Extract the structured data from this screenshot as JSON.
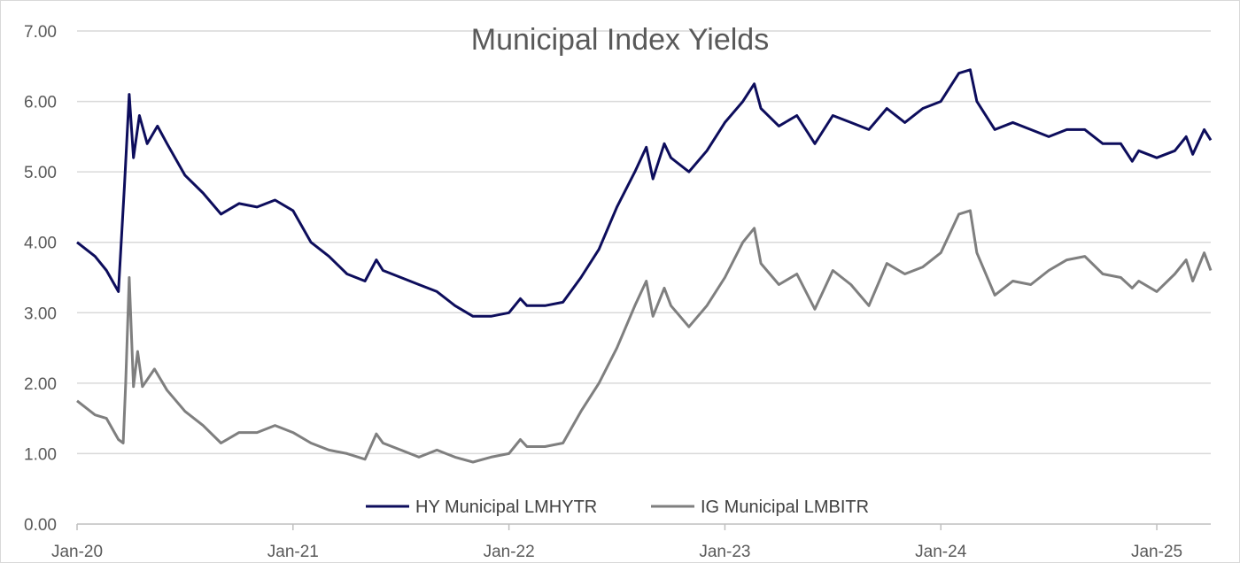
{
  "chart_data": {
    "type": "line",
    "title": "Municipal Index Yields",
    "xlabel": "",
    "ylabel": "",
    "ylim": [
      0,
      7
    ],
    "xlim": [
      "2020-01",
      "2025-04"
    ],
    "grid": true,
    "legend_position": "bottom",
    "y_ticks": [
      "0.00",
      "1.00",
      "2.00",
      "3.00",
      "4.00",
      "5.00",
      "6.00",
      "7.00"
    ],
    "x_ticks": [
      {
        "label": "Jan-20",
        "date": "2020-01"
      },
      {
        "label": "Jan-21",
        "date": "2021-01"
      },
      {
        "label": "Jan-22",
        "date": "2022-01"
      },
      {
        "label": "Jan-23",
        "date": "2023-01"
      },
      {
        "label": "Jan-24",
        "date": "2024-01"
      },
      {
        "label": "Jan-25",
        "date": "2025-01"
      }
    ],
    "series": [
      {
        "name": "HY Municipal LMHYTR",
        "color": "#0d0d5c",
        "points": [
          [
            "2020-01",
            4.0
          ],
          [
            "2020-02",
            3.8
          ],
          [
            "2020-02-20",
            3.6
          ],
          [
            "2020-03-10",
            3.3
          ],
          [
            "2020-03-20",
            4.8
          ],
          [
            "2020-03-28",
            6.1
          ],
          [
            "2020-04-05",
            5.2
          ],
          [
            "2020-04-15",
            5.8
          ],
          [
            "2020-04-28",
            5.4
          ],
          [
            "2020-05-15",
            5.65
          ],
          [
            "2020-06",
            5.4
          ],
          [
            "2020-07",
            4.95
          ],
          [
            "2020-08",
            4.7
          ],
          [
            "2020-09",
            4.4
          ],
          [
            "2020-10",
            4.55
          ],
          [
            "2020-11",
            4.5
          ],
          [
            "2020-12",
            4.6
          ],
          [
            "2021-01",
            4.45
          ],
          [
            "2021-02",
            4.0
          ],
          [
            "2021-03",
            3.8
          ],
          [
            "2021-04",
            3.55
          ],
          [
            "2021-05",
            3.45
          ],
          [
            "2021-05-20",
            3.75
          ],
          [
            "2021-06",
            3.6
          ],
          [
            "2021-07",
            3.5
          ],
          [
            "2021-08",
            3.4
          ],
          [
            "2021-09",
            3.3
          ],
          [
            "2021-10",
            3.1
          ],
          [
            "2021-11",
            2.95
          ],
          [
            "2021-12",
            2.95
          ],
          [
            "2022-01",
            3.0
          ],
          [
            "2022-01-20",
            3.2
          ],
          [
            "2022-02",
            3.1
          ],
          [
            "2022-03",
            3.1
          ],
          [
            "2022-04",
            3.15
          ],
          [
            "2022-05",
            3.5
          ],
          [
            "2022-06",
            3.9
          ],
          [
            "2022-07",
            4.5
          ],
          [
            "2022-08",
            5.0
          ],
          [
            "2022-08-20",
            5.35
          ],
          [
            "2022-09",
            4.9
          ],
          [
            "2022-09-20",
            5.4
          ],
          [
            "2022-10",
            5.2
          ],
          [
            "2022-11",
            5.0
          ],
          [
            "2022-12",
            5.3
          ],
          [
            "2023-01",
            5.7
          ],
          [
            "2023-02",
            6.0
          ],
          [
            "2023-02-20",
            6.25
          ],
          [
            "2023-03",
            5.9
          ],
          [
            "2023-04",
            5.65
          ],
          [
            "2023-05",
            5.8
          ],
          [
            "2023-06",
            5.4
          ],
          [
            "2023-07",
            5.8
          ],
          [
            "2023-08",
            5.7
          ],
          [
            "2023-09",
            5.6
          ],
          [
            "2023-10",
            5.9
          ],
          [
            "2023-11",
            5.7
          ],
          [
            "2023-12",
            5.9
          ],
          [
            "2024-01",
            6.0
          ],
          [
            "2024-02",
            6.4
          ],
          [
            "2024-02-20",
            6.45
          ],
          [
            "2024-03",
            6.0
          ],
          [
            "2024-04",
            5.6
          ],
          [
            "2024-05",
            5.7
          ],
          [
            "2024-06",
            5.6
          ],
          [
            "2024-07",
            5.5
          ],
          [
            "2024-08",
            5.6
          ],
          [
            "2024-09",
            5.6
          ],
          [
            "2024-10",
            5.4
          ],
          [
            "2024-11",
            5.4
          ],
          [
            "2024-11-20",
            5.15
          ],
          [
            "2024-12",
            5.3
          ],
          [
            "2025-01",
            5.2
          ],
          [
            "2025-02",
            5.3
          ],
          [
            "2025-02-20",
            5.5
          ],
          [
            "2025-03",
            5.25
          ],
          [
            "2025-03-20",
            5.6
          ],
          [
            "2025-04",
            5.45
          ]
        ]
      },
      {
        "name": "IG Municipal LMBITR",
        "color": "#7f7f7f",
        "points": [
          [
            "2020-01",
            1.75
          ],
          [
            "2020-02",
            1.55
          ],
          [
            "2020-02-20",
            1.5
          ],
          [
            "2020-03-10",
            1.2
          ],
          [
            "2020-03-18",
            1.15
          ],
          [
            "2020-03-22",
            2.0
          ],
          [
            "2020-03-28",
            3.5
          ],
          [
            "2020-04-05",
            1.95
          ],
          [
            "2020-04-12",
            2.45
          ],
          [
            "2020-04-20",
            1.95
          ],
          [
            "2020-05-10",
            2.2
          ],
          [
            "2020-06",
            1.9
          ],
          [
            "2020-07",
            1.6
          ],
          [
            "2020-08",
            1.4
          ],
          [
            "2020-09",
            1.15
          ],
          [
            "2020-10",
            1.3
          ],
          [
            "2020-11",
            1.3
          ],
          [
            "2020-12",
            1.4
          ],
          [
            "2021-01",
            1.3
          ],
          [
            "2021-02",
            1.15
          ],
          [
            "2021-03",
            1.05
          ],
          [
            "2021-04",
            1.0
          ],
          [
            "2021-05",
            0.92
          ],
          [
            "2021-05-20",
            1.28
          ],
          [
            "2021-06",
            1.15
          ],
          [
            "2021-07",
            1.05
          ],
          [
            "2021-08",
            0.95
          ],
          [
            "2021-09",
            1.05
          ],
          [
            "2021-10",
            0.95
          ],
          [
            "2021-11",
            0.88
          ],
          [
            "2021-12",
            0.95
          ],
          [
            "2022-01",
            1.0
          ],
          [
            "2022-01-20",
            1.2
          ],
          [
            "2022-02",
            1.1
          ],
          [
            "2022-03",
            1.1
          ],
          [
            "2022-04",
            1.15
          ],
          [
            "2022-05",
            1.6
          ],
          [
            "2022-06",
            2.0
          ],
          [
            "2022-07",
            2.5
          ],
          [
            "2022-08",
            3.1
          ],
          [
            "2022-08-20",
            3.45
          ],
          [
            "2022-09",
            2.95
          ],
          [
            "2022-09-20",
            3.35
          ],
          [
            "2022-10",
            3.1
          ],
          [
            "2022-11",
            2.8
          ],
          [
            "2022-12",
            3.1
          ],
          [
            "2023-01",
            3.5
          ],
          [
            "2023-02",
            4.0
          ],
          [
            "2023-02-20",
            4.2
          ],
          [
            "2023-03",
            3.7
          ],
          [
            "2023-04",
            3.4
          ],
          [
            "2023-05",
            3.55
          ],
          [
            "2023-06",
            3.05
          ],
          [
            "2023-07",
            3.6
          ],
          [
            "2023-08",
            3.4
          ],
          [
            "2023-09",
            3.1
          ],
          [
            "2023-10",
            3.7
          ],
          [
            "2023-11",
            3.55
          ],
          [
            "2023-12",
            3.65
          ],
          [
            "2024-01",
            3.85
          ],
          [
            "2024-02",
            4.4
          ],
          [
            "2024-02-20",
            4.45
          ],
          [
            "2024-03",
            3.85
          ],
          [
            "2024-04",
            3.25
          ],
          [
            "2024-05",
            3.45
          ],
          [
            "2024-06",
            3.4
          ],
          [
            "2024-07",
            3.6
          ],
          [
            "2024-08",
            3.75
          ],
          [
            "2024-09",
            3.8
          ],
          [
            "2024-10",
            3.55
          ],
          [
            "2024-11",
            3.5
          ],
          [
            "2024-11-20",
            3.35
          ],
          [
            "2024-12",
            3.45
          ],
          [
            "2025-01",
            3.3
          ],
          [
            "2025-02",
            3.55
          ],
          [
            "2025-02-20",
            3.75
          ],
          [
            "2025-03",
            3.45
          ],
          [
            "2025-03-20",
            3.85
          ],
          [
            "2025-04",
            3.6
          ]
        ]
      }
    ]
  }
}
